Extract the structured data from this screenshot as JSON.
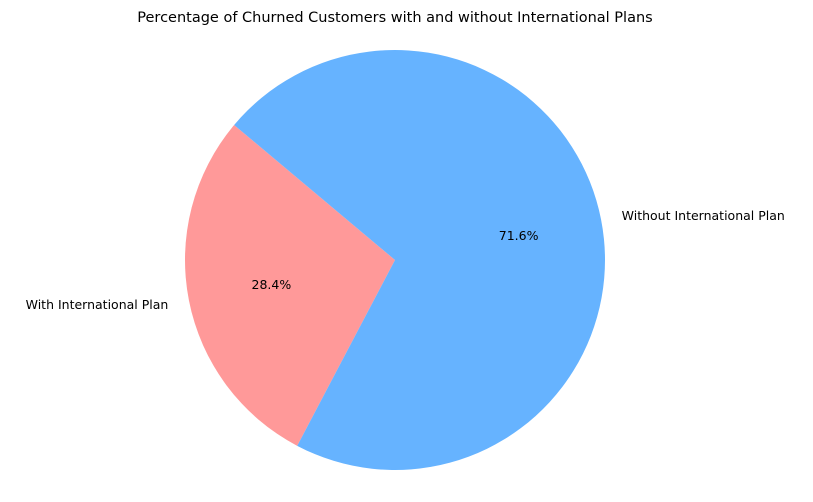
{
  "chart_data": {
    "type": "pie",
    "title": "Percentage of Churned Customers with and without International Plans",
    "slices": [
      {
        "label": "With International Plan",
        "value": 28.4,
        "pct_label": "28.4%",
        "color": "#ff9999"
      },
      {
        "label": "Without International Plan",
        "value": 71.6,
        "pct_label": "71.6%",
        "color": "#66b3ff"
      }
    ],
    "start_angle_deg": 140,
    "direction": "counterclockwise",
    "aspect": "equal"
  }
}
